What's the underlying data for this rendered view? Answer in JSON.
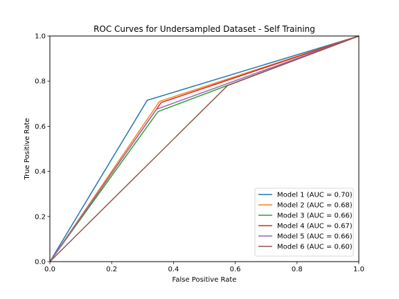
{
  "chart_data": {
    "type": "line",
    "title": "ROC Curves for Undersampled Dataset - Self Training",
    "xlabel": "False Positive Rate",
    "ylabel": "True Positive Rate",
    "xlim": [
      0.0,
      1.0
    ],
    "ylim": [
      0.0,
      1.0
    ],
    "x_ticks": [
      "0.0",
      "0.2",
      "0.4",
      "0.6",
      "0.8",
      "1.0"
    ],
    "y_ticks": [
      "0.0",
      "0.2",
      "0.4",
      "0.6",
      "0.8",
      "1.0"
    ],
    "grid": false,
    "legend_position": "lower-right",
    "series": [
      {
        "name": "Model 1 (AUC = 0.70)",
        "color": "#1f77b4",
        "x": [
          0,
          0.315,
          1
        ],
        "y": [
          0,
          0.715,
          1
        ]
      },
      {
        "name": "Model 2 (AUC = 0.68)",
        "color": "#ff7f0e",
        "x": [
          0,
          0.355,
          1
        ],
        "y": [
          0,
          0.71,
          1
        ]
      },
      {
        "name": "Model 3 (AUC = 0.66)",
        "color": "#2ca02c",
        "x": [
          0,
          0.35,
          1
        ],
        "y": [
          0,
          0.665,
          1
        ]
      },
      {
        "name": "Model 4 (AUC = 0.67)",
        "color": "#d62728",
        "x": [
          0,
          0.36,
          1
        ],
        "y": [
          0,
          0.705,
          1
        ]
      },
      {
        "name": "Model 5 (AUC = 0.66)",
        "color": "#9467bd",
        "x": [
          0,
          0.345,
          1
        ],
        "y": [
          0,
          0.675,
          1
        ]
      },
      {
        "name": "Model 6 (AUC = 0.60)",
        "color": "#8c564b",
        "x": [
          0,
          0.575,
          1
        ],
        "y": [
          0,
          0.78,
          1
        ]
      }
    ]
  }
}
